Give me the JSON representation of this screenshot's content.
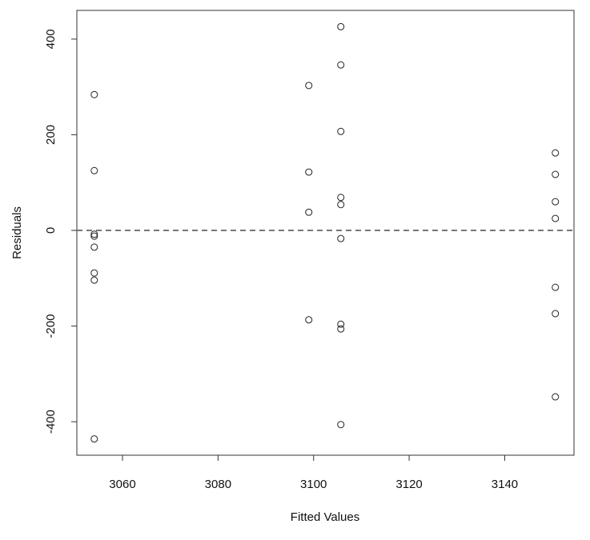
{
  "chart_data": {
    "type": "scatter",
    "x_label": "Fitted Values",
    "y_label": "Residuals",
    "x": [
      3054.1,
      3054.1,
      3054.1,
      3054.1,
      3054.1,
      3054.1,
      3054.1,
      3054.1,
      3099,
      3099,
      3099,
      3099,
      3105.7,
      3105.7,
      3105.7,
      3105.7,
      3105.7,
      3105.7,
      3105.7,
      3105.7,
      3105.7,
      3150.6,
      3150.6,
      3150.6,
      3150.6,
      3150.6,
      3150.6,
      3150.6
    ],
    "y": [
      284,
      125,
      -8,
      -12,
      -35,
      -89,
      -104,
      -436,
      303,
      122,
      38,
      -187,
      426,
      346,
      207,
      69,
      54,
      -17,
      -196,
      -206,
      -406,
      162,
      117,
      60,
      25,
      -119,
      -174,
      -348
    ],
    "color": "#222222",
    "xlim": [
      3050.45,
      3154.5
    ],
    "ylim": [
      -470,
      460
    ],
    "xticks": [
      3060,
      3080,
      3100,
      3120,
      3140
    ],
    "yticks": [
      -400,
      -200,
      0,
      200,
      400
    ],
    "hline": 0,
    "hline_color": "#777777"
  }
}
